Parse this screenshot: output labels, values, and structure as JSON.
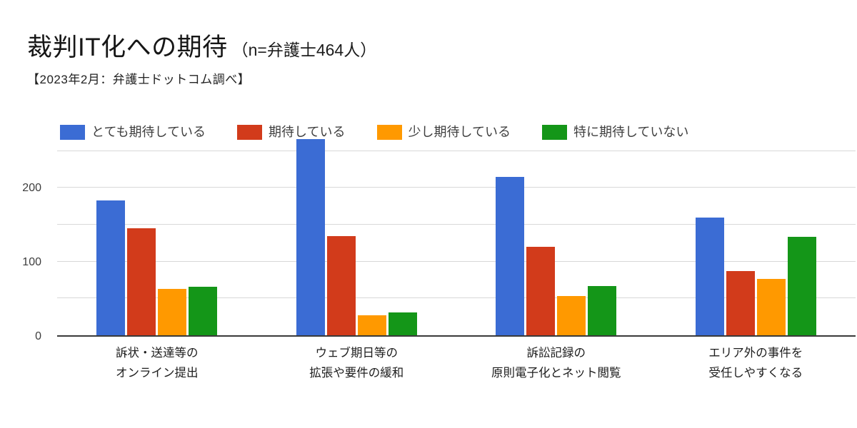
{
  "page": {
    "title": "裁判IT化への期待",
    "title_note": "（n=弁護士464人）",
    "subtitle": "【2023年2月：弁護士ドットコム調べ】"
  },
  "chart_data": {
    "type": "bar",
    "title": "裁判IT化への期待（n=弁護士464人）",
    "subtitle": "【2023年2月：弁護士ドットコム調べ】",
    "categories": [
      [
        "訴状・送達等の",
        "オンライン提出"
      ],
      [
        "ウェブ期日等の",
        "拡張や要件の緩和"
      ],
      [
        "訴訟記録の",
        "原則電子化とネット閲覧"
      ],
      [
        "エリア外の事件を",
        "受任しやすくなる"
      ]
    ],
    "series": [
      {
        "name": "とても期待している",
        "color": "#3B6CD4",
        "values": [
          183,
          266,
          215,
          160
        ]
      },
      {
        "name": "期待している",
        "color": "#D23B1B",
        "values": [
          145,
          135,
          120,
          87
        ]
      },
      {
        "name": "少し期待している",
        "color": "#FF9900",
        "values": [
          63,
          27,
          53,
          76
        ]
      },
      {
        "name": "特に期待していない",
        "color": "#149618",
        "values": [
          66,
          31,
          67,
          134
        ]
      }
    ],
    "xlabel": "",
    "ylabel": "",
    "ylim": [
      0,
      270
    ],
    "ytick_labels": [
      0,
      100,
      200
    ],
    "gridline_values": [
      50,
      100,
      150,
      200,
      250
    ],
    "grid": true,
    "legend_position": "top",
    "background_color": "#ffffff",
    "axis_line_color": "#3a3a3a",
    "gridline_color": "#d8d8d8"
  }
}
